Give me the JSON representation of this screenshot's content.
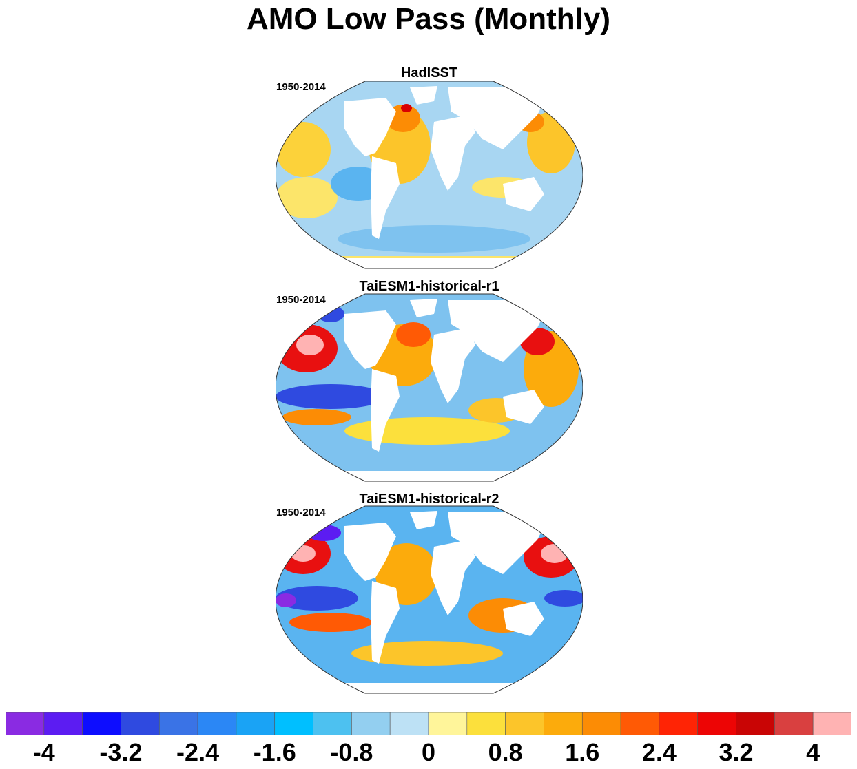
{
  "title": "AMO Low Pass (Monthly)",
  "panels": [
    {
      "name": "HadISST",
      "period": "1950-2014"
    },
    {
      "name": "TaiESM1-historical-r1",
      "period": "1950-2014"
    },
    {
      "name": "TaiESM1-historical-r2",
      "period": "1950-2014"
    }
  ],
  "colorbar": {
    "colors": [
      "#8a2be2",
      "#5c1cf2",
      "#0d0dff",
      "#2f4ae0",
      "#3a73e6",
      "#2b87f5",
      "#1aa3f5",
      "#00bfff",
      "#4dc1f0",
      "#93cff0",
      "#bde1f5",
      "#fff59a",
      "#fce03c",
      "#fcc52a",
      "#fcab0c",
      "#fc8c05",
      "#ff5a05",
      "#ff2405",
      "#ed0505",
      "#c90505",
      "#d94040",
      "#ffb3b3"
    ],
    "tick_labels": [
      "-4",
      "-3.2",
      "-2.4",
      "-1.6",
      "-0.8",
      "0",
      "0.8",
      "1.6",
      "2.4",
      "3.2",
      "4"
    ]
  }
}
